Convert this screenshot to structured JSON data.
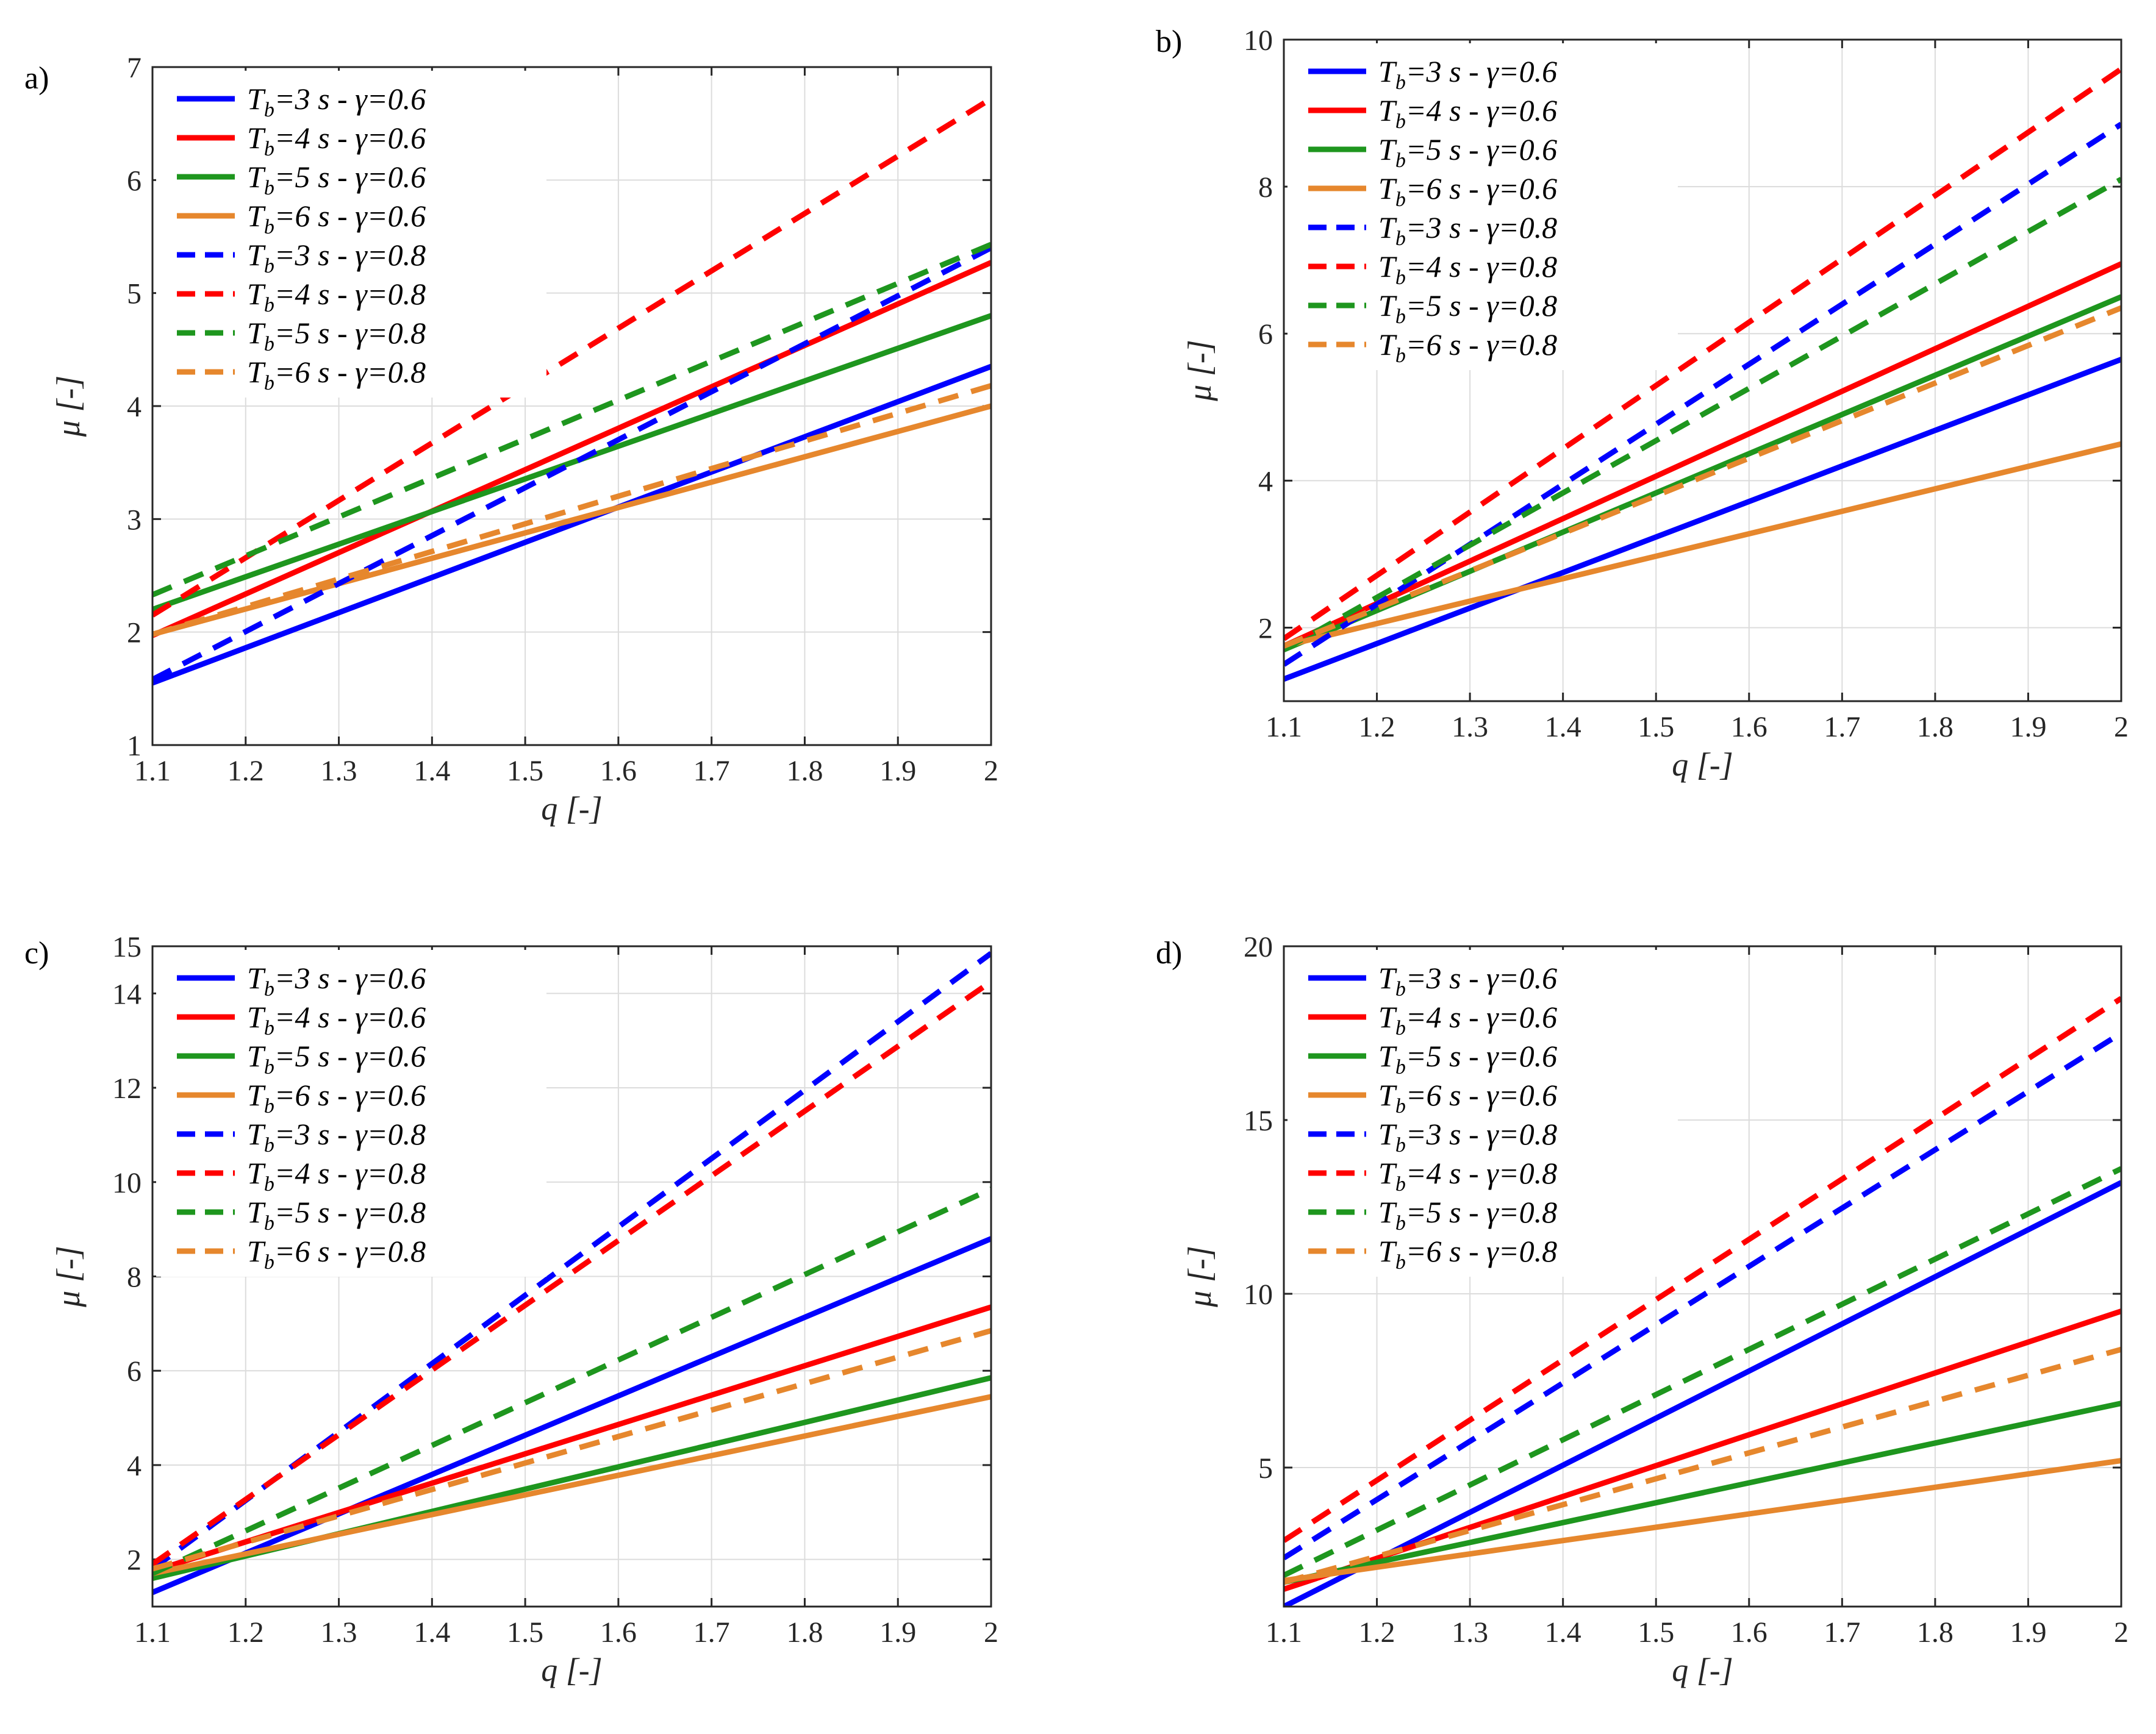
{
  "chart_data": [
    {
      "type": "line",
      "panel_label": "a)",
      "xlabel": "q [-]",
      "ylabel": "μ [-]",
      "xlim": [
        1.1,
        2
      ],
      "ylim": [
        1,
        7
      ],
      "xticks": [
        "1.1",
        "1.2",
        "1.3",
        "1.4",
        "1.5",
        "1.6",
        "1.7",
        "1.8",
        "1.9",
        "2"
      ],
      "yticks": [
        "1",
        "2",
        "3",
        "4",
        "5",
        "6",
        "7"
      ],
      "grid": true,
      "legend_position": "top-left",
      "series": [
        {
          "name": "Tb=3 s - γ=0.6",
          "tb": "3",
          "gamma": "0.6",
          "color": "#0000ff",
          "style": "solid",
          "x": [
            1.1,
            2
          ],
          "y": [
            1.55,
            4.35
          ]
        },
        {
          "name": "Tb=4 s - γ=0.6",
          "tb": "4",
          "gamma": "0.6",
          "color": "#ff0000",
          "style": "solid",
          "x": [
            1.1,
            2
          ],
          "y": [
            1.97,
            5.27
          ]
        },
        {
          "name": "Tb=5 s - γ=0.6",
          "tb": "5",
          "gamma": "0.6",
          "color": "#1e961e",
          "style": "solid",
          "x": [
            1.1,
            2
          ],
          "y": [
            2.2,
            4.8
          ]
        },
        {
          "name": "Tb=6 s - γ=0.6",
          "tb": "6",
          "gamma": "0.6",
          "color": "#e6872d",
          "style": "solid",
          "x": [
            1.1,
            2
          ],
          "y": [
            1.98,
            4.0
          ]
        },
        {
          "name": "Tb=3 s - γ=0.8",
          "tb": "3",
          "gamma": "0.8",
          "color": "#0000ff",
          "style": "dashed",
          "x": [
            1.1,
            2
          ],
          "y": [
            1.58,
            5.4
          ]
        },
        {
          "name": "Tb=4 s - γ=0.8",
          "tb": "4",
          "gamma": "0.8",
          "color": "#ff0000",
          "style": "dashed",
          "x": [
            1.1,
            2
          ],
          "y": [
            2.15,
            6.72
          ]
        },
        {
          "name": "Tb=5 s - γ=0.8",
          "tb": "5",
          "gamma": "0.8",
          "color": "#1e961e",
          "style": "dashed",
          "x": [
            1.1,
            2
          ],
          "y": [
            2.33,
            5.43
          ]
        },
        {
          "name": "Tb=6 s - γ=0.8",
          "tb": "6",
          "gamma": "0.8",
          "color": "#e6872d",
          "style": "dashed",
          "x": [
            1.1,
            2
          ],
          "y": [
            1.98,
            4.18
          ]
        }
      ]
    },
    {
      "type": "line",
      "panel_label": "b)",
      "xlabel": "q [-]",
      "ylabel": "μ [-]",
      "xlim": [
        1.1,
        2
      ],
      "ylim": [
        1,
        10
      ],
      "xticks": [
        "1.1",
        "1.2",
        "1.3",
        "1.4",
        "1.5",
        "1.6",
        "1.7",
        "1.8",
        "1.9",
        "2"
      ],
      "yticks": [
        "2",
        "4",
        "6",
        "8",
        "10"
      ],
      "grid": true,
      "legend_position": "top-left",
      "series": [
        {
          "name": "Tb=3 s - γ=0.6",
          "tb": "3",
          "gamma": "0.6",
          "color": "#0000ff",
          "style": "solid",
          "x": [
            1.1,
            2
          ],
          "y": [
            1.3,
            5.65
          ]
        },
        {
          "name": "Tb=4 s - γ=0.6",
          "tb": "4",
          "gamma": "0.6",
          "color": "#ff0000",
          "style": "solid",
          "x": [
            1.1,
            2
          ],
          "y": [
            1.75,
            6.95
          ]
        },
        {
          "name": "Tb=5 s - γ=0.6",
          "tb": "5",
          "gamma": "0.6",
          "color": "#1e961e",
          "style": "solid",
          "x": [
            1.1,
            2
          ],
          "y": [
            1.7,
            6.5
          ]
        },
        {
          "name": "Tb=6 s - γ=0.6",
          "tb": "6",
          "gamma": "0.6",
          "color": "#e6872d",
          "style": "solid",
          "x": [
            1.1,
            2
          ],
          "y": [
            1.75,
            4.5
          ]
        },
        {
          "name": "Tb=3 s - γ=0.8",
          "tb": "3",
          "gamma": "0.8",
          "color": "#0000ff",
          "style": "dashed",
          "x": [
            1.1,
            2
          ],
          "y": [
            1.5,
            8.85
          ]
        },
        {
          "name": "Tb=4 s - γ=0.8",
          "tb": "4",
          "gamma": "0.8",
          "color": "#ff0000",
          "style": "dashed",
          "x": [
            1.1,
            2
          ],
          "y": [
            1.85,
            9.6
          ]
        },
        {
          "name": "Tb=5 s - γ=0.8",
          "tb": "5",
          "gamma": "0.8",
          "color": "#1e961e",
          "style": "dashed",
          "x": [
            1.1,
            2
          ],
          "y": [
            1.7,
            8.1
          ]
        },
        {
          "name": "Tb=6 s - γ=0.8",
          "tb": "6",
          "gamma": "0.8",
          "color": "#e6872d",
          "style": "dashed",
          "x": [
            1.1,
            2
          ],
          "y": [
            1.75,
            6.35
          ]
        }
      ]
    },
    {
      "type": "line",
      "panel_label": "c)",
      "xlabel": "q [-]",
      "ylabel": "μ [-]",
      "xlim": [
        1.1,
        2
      ],
      "ylim": [
        1,
        15
      ],
      "xticks": [
        "1.1",
        "1.2",
        "1.3",
        "1.4",
        "1.5",
        "1.6",
        "1.7",
        "1.8",
        "1.9",
        "2"
      ],
      "yticks": [
        "2",
        "4",
        "6",
        "8",
        "10",
        "12",
        "14",
        "15"
      ],
      "grid": true,
      "legend_position": "top-left",
      "series": [
        {
          "name": "Tb=3 s - γ=0.6",
          "tb": "3",
          "gamma": "0.6",
          "color": "#0000ff",
          "style": "solid",
          "x": [
            1.1,
            2
          ],
          "y": [
            1.3,
            8.8
          ]
        },
        {
          "name": "Tb=4 s - γ=0.6",
          "tb": "4",
          "gamma": "0.6",
          "color": "#ff0000",
          "style": "solid",
          "x": [
            1.1,
            2
          ],
          "y": [
            1.75,
            7.35
          ]
        },
        {
          "name": "Tb=5 s - γ=0.6",
          "tb": "5",
          "gamma": "0.6",
          "color": "#1e961e",
          "style": "solid",
          "x": [
            1.1,
            2
          ],
          "y": [
            1.6,
            5.85
          ]
        },
        {
          "name": "Tb=6 s - γ=0.6",
          "tb": "6",
          "gamma": "0.6",
          "color": "#e6872d",
          "style": "solid",
          "x": [
            1.1,
            2
          ],
          "y": [
            1.7,
            5.45
          ]
        },
        {
          "name": "Tb=3 s - γ=0.8",
          "tb": "3",
          "gamma": "0.8",
          "color": "#0000ff",
          "style": "dashed",
          "x": [
            1.1,
            2
          ],
          "y": [
            1.8,
            14.85
          ]
        },
        {
          "name": "Tb=4 s - γ=0.8",
          "tb": "4",
          "gamma": "0.8",
          "color": "#ff0000",
          "style": "dashed",
          "x": [
            1.1,
            2
          ],
          "y": [
            1.9,
            14.25
          ]
        },
        {
          "name": "Tb=5 s - γ=0.8",
          "tb": "5",
          "gamma": "0.8",
          "color": "#1e961e",
          "style": "dashed",
          "x": [
            1.1,
            2
          ],
          "y": [
            1.7,
            9.85
          ]
        },
        {
          "name": "Tb=6 s - γ=0.8",
          "tb": "6",
          "gamma": "0.8",
          "color": "#e6872d",
          "style": "dashed",
          "x": [
            1.1,
            2
          ],
          "y": [
            1.8,
            6.85
          ]
        }
      ]
    },
    {
      "type": "line",
      "panel_label": "d)",
      "xlabel": "q [-]",
      "ylabel": "μ [-]",
      "xlim": [
        1.1,
        2
      ],
      "ylim": [
        1,
        20
      ],
      "xticks": [
        "1.1",
        "1.2",
        "1.3",
        "1.4",
        "1.5",
        "1.6",
        "1.7",
        "1.8",
        "1.9",
        "2"
      ],
      "yticks": [
        "5",
        "10",
        "15",
        "20"
      ],
      "grid": true,
      "legend_position": "top-left",
      "series": [
        {
          "name": "Tb=3 s - γ=0.6",
          "tb": "3",
          "gamma": "0.6",
          "color": "#0000ff",
          "style": "solid",
          "x": [
            1.1,
            2
          ],
          "y": [
            1.0,
            13.2
          ]
        },
        {
          "name": "Tb=4 s - γ=0.6",
          "tb": "4",
          "gamma": "0.6",
          "color": "#ff0000",
          "style": "solid",
          "x": [
            1.1,
            2
          ],
          "y": [
            1.5,
            9.5
          ]
        },
        {
          "name": "Tb=5 s - γ=0.6",
          "tb": "5",
          "gamma": "0.6",
          "color": "#1e961e",
          "style": "solid",
          "x": [
            1.1,
            2
          ],
          "y": [
            1.7,
            6.85
          ]
        },
        {
          "name": "Tb=6 s - γ=0.6",
          "tb": "6",
          "gamma": "0.6",
          "color": "#e6872d",
          "style": "solid",
          "x": [
            1.1,
            2
          ],
          "y": [
            1.75,
            5.2
          ]
        },
        {
          "name": "Tb=3 s - γ=0.8",
          "tb": "3",
          "gamma": "0.8",
          "color": "#0000ff",
          "style": "dashed",
          "x": [
            1.1,
            2
          ],
          "y": [
            2.4,
            17.5
          ]
        },
        {
          "name": "Tb=4 s - γ=0.8",
          "tb": "4",
          "gamma": "0.8",
          "color": "#ff0000",
          "style": "dashed",
          "x": [
            1.1,
            2
          ],
          "y": [
            2.9,
            18.5
          ]
        },
        {
          "name": "Tb=5 s - γ=0.8",
          "tb": "5",
          "gamma": "0.8",
          "color": "#1e961e",
          "style": "dashed",
          "x": [
            1.1,
            2
          ],
          "y": [
            1.9,
            13.6
          ]
        },
        {
          "name": "Tb=6 s - γ=0.8",
          "tb": "6",
          "gamma": "0.8",
          "color": "#e6872d",
          "style": "dashed",
          "x": [
            1.1,
            2
          ],
          "y": [
            1.7,
            8.4
          ]
        }
      ]
    }
  ]
}
